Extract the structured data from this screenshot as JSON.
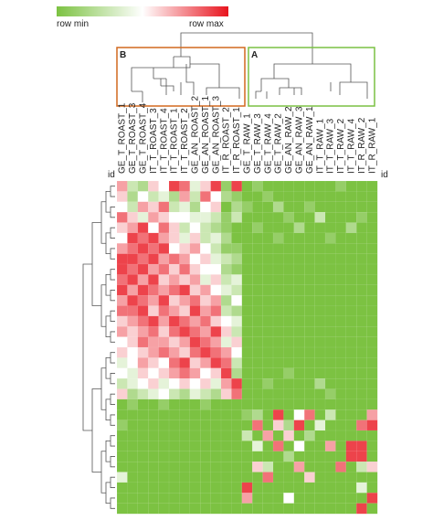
{
  "chart_data": {
    "type": "heatmap",
    "legend": {
      "min_label": "row min",
      "max_label": "row max"
    },
    "zlim": [
      0,
      1
    ],
    "colors": [
      "#7cc242",
      "#ffffff",
      "#e8141e"
    ],
    "row_label": "id",
    "clusters": [
      {
        "label": "B",
        "color": "#d2691e"
      },
      {
        "label": "A",
        "color": "#7ac143"
      }
    ],
    "categories": [
      "GE_T_ROAST_1",
      "GE_T_ROAST_3",
      "GE_T_ROAST_4",
      "IT_T_ROAST_3",
      "IT_T_ROAST_4",
      "IT_T_ROAST_1",
      "IT_T_ROAST_2",
      "GE_AN_ROAST_2",
      "GE_AN_ROAST_1",
      "GE_AN_ROAST_3",
      "IT_R_ROAST_2",
      "IT_R_ROAST_1",
      "GE_T_RAW_1",
      "GE_T_RAW_3",
      "GE_T_RAW_4",
      "GE_T_RAW_2",
      "GE_AN_RAW_2",
      "GE_AN_RAW_3",
      "GE_AN_RAW_1",
      "IT_T_RAW_1",
      "IT_T_RAW_3",
      "IT_T_RAW_2",
      "IT_T_RAW_4",
      "IT_R_RAW_2",
      "IT_R_RAW_1"
    ],
    "values": [
      [
        0.7,
        0.3,
        0.2,
        0.6,
        0.5,
        0.9,
        0.8,
        0.4,
        0.6,
        0.9,
        0.1,
        0.9,
        0,
        0.1,
        0,
        0,
        0,
        0,
        0,
        0,
        0,
        0.1,
        0,
        0,
        0
      ],
      [
        0.6,
        0.2,
        0.5,
        0.3,
        0.4,
        0.2,
        0.7,
        0.3,
        0.8,
        0.5,
        0.2,
        0.1,
        0,
        0,
        0.1,
        0,
        0,
        0,
        0,
        0,
        0,
        0,
        0,
        0,
        0
      ],
      [
        0.5,
        0.3,
        0.7,
        0.6,
        0.8,
        0.3,
        0.4,
        0.2,
        0.5,
        0.6,
        0,
        0.2,
        0.1,
        0,
        0,
        0.2,
        0,
        0,
        0.1,
        0,
        0,
        0,
        0,
        0,
        0
      ],
      [
        0.8,
        0.6,
        0.4,
        0.7,
        0.6,
        0.5,
        0.5,
        0.4,
        0.4,
        0.3,
        0.1,
        0.3,
        0,
        0,
        0,
        0,
        0.1,
        0,
        0,
        0.3,
        0,
        0,
        0,
        0.1,
        0
      ],
      [
        0.6,
        0.7,
        0.9,
        0.5,
        0.8,
        0.6,
        0.3,
        0.5,
        0.3,
        0.2,
        0.1,
        0,
        0,
        0.1,
        0,
        0,
        0,
        0.2,
        0,
        0,
        0,
        0,
        0.2,
        0,
        0
      ],
      [
        0.5,
        0.9,
        0.8,
        0.9,
        0.7,
        0.6,
        0.4,
        0.6,
        0.3,
        0.4,
        0.2,
        0,
        0,
        0,
        0,
        0.1,
        0,
        0,
        0,
        0,
        0.1,
        0,
        0,
        0,
        0
      ],
      [
        0.7,
        0.8,
        0.9,
        0.8,
        0.9,
        0.5,
        0.6,
        0.7,
        0.5,
        0.3,
        0.1,
        0.1,
        0,
        0,
        0,
        0,
        0,
        0,
        0,
        0,
        0,
        0,
        0,
        0,
        0
      ],
      [
        0.9,
        0.9,
        0.8,
        0.9,
        0.7,
        0.8,
        0.7,
        0.5,
        0.6,
        0.4,
        0.3,
        0.2,
        0,
        0,
        0,
        0,
        0,
        0,
        0,
        0,
        0,
        0,
        0,
        0,
        0
      ],
      [
        0.9,
        0.8,
        0.9,
        0.7,
        0.8,
        0.6,
        0.8,
        0.6,
        0.5,
        0.5,
        0.2,
        0.1,
        0,
        0,
        0,
        0,
        0,
        0,
        0,
        0,
        0,
        0,
        0,
        0,
        0
      ],
      [
        0.8,
        0.9,
        0.7,
        0.9,
        0.6,
        0.7,
        0.6,
        0.7,
        0.4,
        0.6,
        0.3,
        0.4,
        0,
        0,
        0,
        0,
        0,
        0,
        0,
        0,
        0,
        0,
        0,
        0,
        0
      ],
      [
        0.9,
        0.7,
        0.9,
        0.8,
        0.7,
        0.8,
        0.9,
        0.6,
        0.7,
        0.5,
        0.4,
        0.3,
        0,
        0,
        0,
        0,
        0,
        0,
        0,
        0,
        0,
        0,
        0,
        0,
        0
      ],
      [
        0.7,
        0.9,
        0.8,
        0.7,
        0.9,
        0.6,
        0.7,
        0.8,
        0.6,
        0.7,
        0.2,
        0.5,
        0,
        0,
        0,
        0,
        0,
        0,
        0,
        0,
        0,
        0,
        0,
        0,
        0
      ],
      [
        0.8,
        0.8,
        0.9,
        0.6,
        0.8,
        0.7,
        0.6,
        0.9,
        0.7,
        0.8,
        0.3,
        0.2,
        0,
        0,
        0,
        0,
        0,
        0,
        0,
        0,
        0,
        0,
        0,
        0,
        0
      ],
      [
        0.6,
        0.7,
        0.8,
        0.9,
        0.7,
        0.9,
        0.8,
        0.7,
        0.8,
        0.6,
        0.5,
        0.4,
        0,
        0,
        0,
        0,
        0,
        0,
        0,
        0,
        0,
        0,
        0,
        0,
        0
      ],
      [
        0.7,
        0.6,
        0.7,
        0.8,
        0.6,
        0.8,
        0.9,
        0.8,
        0.7,
        0.9,
        0.6,
        0.3,
        0,
        0,
        0,
        0,
        0,
        0,
        0,
        0,
        0,
        0,
        0,
        0,
        0
      ],
      [
        0.5,
        0.6,
        0.8,
        0.7,
        0.7,
        0.6,
        0.7,
        0.9,
        0.8,
        0.7,
        0.4,
        0.6,
        0,
        0,
        0,
        0,
        0,
        0,
        0,
        0,
        0,
        0,
        0,
        0,
        0
      ],
      [
        0.6,
        0.5,
        0.6,
        0.7,
        0.8,
        0.7,
        0.6,
        0.8,
        0.9,
        0.8,
        0.7,
        0.5,
        0,
        0,
        0,
        0,
        0,
        0,
        0,
        0,
        0,
        0,
        0,
        0,
        0
      ],
      [
        0.4,
        0.5,
        0.7,
        0.6,
        0.5,
        0.8,
        0.9,
        0.6,
        0.7,
        0.9,
        0.8,
        0.3,
        0,
        0,
        0,
        0,
        0,
        0,
        0,
        0,
        0,
        0,
        0,
        0,
        0
      ],
      [
        0.5,
        0.4,
        0.6,
        0.5,
        0.6,
        0.7,
        0.8,
        0.7,
        0.5,
        0.6,
        0.9,
        0.2,
        0,
        0,
        0,
        0,
        0.1,
        0,
        0,
        0,
        0,
        0,
        0,
        0,
        0
      ],
      [
        0.3,
        0.4,
        0.5,
        0.6,
        0.4,
        0.5,
        0.6,
        0.5,
        0.6,
        0.4,
        0.7,
        0.9,
        0,
        0,
        0.1,
        0,
        0,
        0,
        0,
        0.2,
        0,
        0,
        0,
        0,
        0
      ],
      [
        0.6,
        0.2,
        0.3,
        0.4,
        0.5,
        0.3,
        0.2,
        0.4,
        0.3,
        0.2,
        0.6,
        0.8,
        0,
        0,
        0,
        0,
        0,
        0,
        0,
        0,
        0.1,
        0,
        0,
        0,
        0
      ],
      [
        0,
        0.1,
        0,
        0,
        0.1,
        0,
        0,
        0,
        0.1,
        0,
        0,
        0,
        0,
        0,
        0,
        0,
        0,
        0,
        0,
        0,
        0,
        0,
        0,
        0,
        0
      ],
      [
        0,
        0,
        0,
        0,
        0,
        0,
        0,
        0,
        0,
        0,
        0,
        0,
        0.1,
        0.2,
        0,
        0.9,
        0,
        0.5,
        0.8,
        0,
        0.3,
        0,
        0,
        0,
        0.7
      ],
      [
        0.1,
        0,
        0,
        0,
        0,
        0,
        0,
        0,
        0,
        0,
        0,
        0,
        0,
        0.8,
        0,
        0.6,
        0.2,
        0.9,
        0,
        0.4,
        0,
        0,
        0,
        0.8,
        0.9
      ],
      [
        0,
        0,
        0,
        0,
        0,
        0,
        0,
        0,
        0,
        0,
        0,
        0,
        0.3,
        0,
        0.7,
        0,
        0.6,
        0,
        0.2,
        0,
        0,
        0,
        0,
        0,
        0
      ],
      [
        0,
        0,
        0,
        0,
        0,
        0,
        0,
        0,
        0,
        0,
        0,
        0,
        0,
        0.4,
        0,
        0.8,
        0,
        0.5,
        0,
        0,
        0.7,
        0,
        0.9,
        0.9,
        0
      ],
      [
        0,
        0,
        0,
        0,
        0,
        0,
        0,
        0,
        0,
        0,
        0,
        0,
        0,
        0,
        0,
        0,
        0.2,
        0,
        0,
        0,
        0,
        0,
        0.9,
        0.9,
        0
      ],
      [
        0,
        0,
        0,
        0,
        0,
        0,
        0,
        0,
        0,
        0,
        0,
        0,
        0,
        0.6,
        0.3,
        0,
        0,
        0.7,
        0,
        0,
        0,
        0.8,
        0,
        0.3,
        0.6
      ],
      [
        0.4,
        0,
        0,
        0,
        0,
        0,
        0,
        0,
        0,
        0,
        0,
        0,
        0,
        0,
        0.8,
        0,
        0,
        0,
        0.6,
        0,
        0,
        0,
        0,
        0,
        0
      ],
      [
        0,
        0,
        0,
        0,
        0,
        0,
        0,
        0,
        0,
        0,
        0,
        0,
        0.9,
        0,
        0,
        0,
        0,
        0,
        0,
        0,
        0,
        0,
        0,
        0.4,
        0
      ],
      [
        0,
        0,
        0,
        0,
        0,
        0,
        0,
        0,
        0,
        0,
        0,
        0,
        0.7,
        0,
        0,
        0,
        0.5,
        0,
        0,
        0,
        0,
        0,
        0,
        0,
        0.9
      ],
      [
        0,
        0,
        0,
        0,
        0,
        0,
        0,
        0,
        0,
        0,
        0,
        0,
        0,
        0,
        0,
        0,
        0,
        0,
        0,
        0,
        0,
        0,
        0,
        0.9,
        0
      ]
    ]
  }
}
